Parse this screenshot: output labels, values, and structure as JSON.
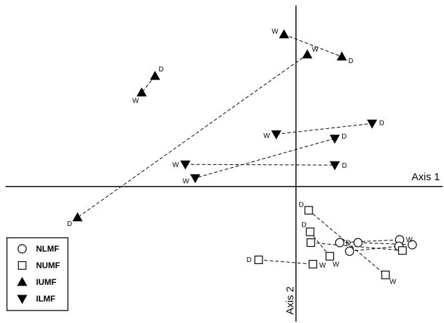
{
  "chart_data": {
    "type": "scatter",
    "x_axis_label": "Axis 1",
    "y_axis_label": "Axis 2",
    "xlim": [
      -420,
      210
    ],
    "ylim": [
      -190,
      260
    ],
    "legend": {
      "placement": "bottom-left",
      "entries": [
        {
          "label": "NLMF",
          "marker": "circle-open"
        },
        {
          "label": "NUMF",
          "marker": "square-open"
        },
        {
          "label": "IUMF",
          "marker": "triangle-up-filled"
        },
        {
          "label": "ILMF",
          "marker": "triangle-down-filled"
        }
      ]
    },
    "series": [
      {
        "name": "NLMF",
        "marker": "circle-open",
        "pairs": [
          {
            "from": [
              62,
              -78
            ],
            "to": [
              147,
              -74
            ],
            "from_label": "",
            "to_label": "W"
          },
          {
            "from": [
              88,
              -78
            ],
            "to": [
              165,
              -81
            ],
            "from_label": "D",
            "to_label": ""
          },
          {
            "from": [
              76,
              -90
            ],
            "to": [
              146,
              -83
            ],
            "from_label": "",
            "to_label": ""
          }
        ]
      },
      {
        "name": "NUMF",
        "marker": "square-open",
        "pairs": [
          {
            "from": [
              18,
              -33
            ],
            "to": [
              127,
              -123
            ],
            "from_label": "D",
            "to_label": "W"
          },
          {
            "from": [
              -53,
              -102
            ],
            "to": [
              24,
              -108
            ],
            "from_label": "D",
            "to_label": "W"
          },
          {
            "from": [
              21,
              -78
            ],
            "to": [
              151,
              -89
            ],
            "from_label": "",
            "to_label": ""
          },
          {
            "from": [
              20,
              -63
            ],
            "to": [
              48,
              -97
            ],
            "from_label": "D",
            "to_label": "W"
          }
        ]
      },
      {
        "name": "IUMF",
        "marker": "triangle-up-filled",
        "pairs": [
          {
            "from": [
              -17,
              212
            ],
            "to": [
              65,
              181
            ],
            "from_label": "W",
            "to_label": "D"
          },
          {
            "from": [
              -200,
              154
            ],
            "to": [
              -219,
              131
            ],
            "from_label": "D",
            "to_label": "W"
          },
          {
            "from": [
              16,
              184
            ],
            "to": [
              -310,
              -43
            ],
            "from_label": "W",
            "to_label": "D"
          }
        ]
      },
      {
        "name": "ILMF",
        "marker": "triangle-down-filled",
        "pairs": [
          {
            "from": [
              -28,
              73
            ],
            "to": [
              108,
              88
            ],
            "from_label": "W",
            "to_label": "D"
          },
          {
            "from": [
              55,
              67
            ],
            "to": [
              -143,
              12
            ],
            "from_label": "D",
            "to_label": "W"
          },
          {
            "from": [
              -157,
              31
            ],
            "to": [
              55,
              30
            ],
            "from_label": "W",
            "to_label": "D"
          }
        ]
      }
    ]
  }
}
